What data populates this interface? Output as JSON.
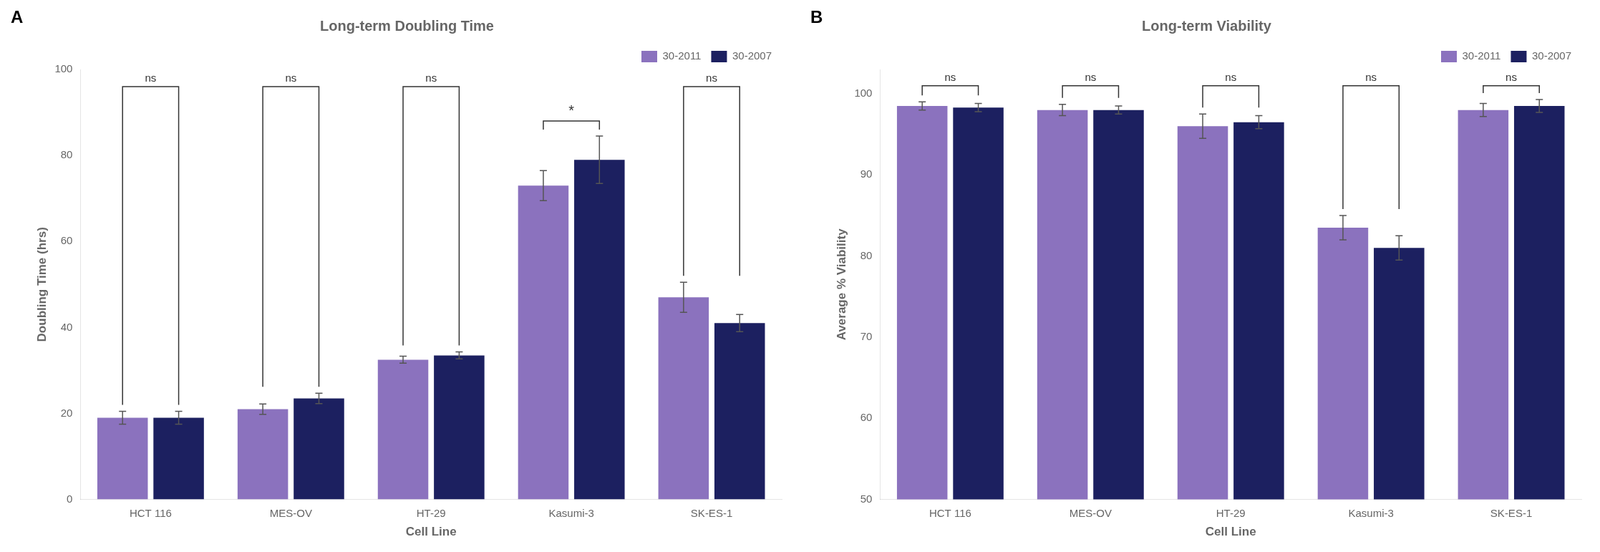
{
  "chart_data": [
    {
      "type": "bar",
      "panel_label": "A",
      "title": "Long-term Doubling Time",
      "xlabel": "Cell Line",
      "ylabel": "Doubling Time (hrs)",
      "categories": [
        "HCT 116",
        "MES-OV",
        "HT-29",
        "Kasumi-3",
        "SK-ES-1"
      ],
      "series": [
        {
          "name": "30-2011",
          "color": "#8B72BE",
          "values": [
            19.0,
            21.0,
            32.5,
            73.0,
            47.0
          ],
          "errors": [
            1.5,
            1.2,
            0.8,
            3.5,
            3.5
          ]
        },
        {
          "name": "30-2007",
          "color": "#1C2060",
          "values": [
            19.0,
            23.5,
            33.5,
            79.0,
            41.0
          ],
          "errors": [
            1.5,
            1.2,
            0.8,
            5.5,
            2.0
          ]
        }
      ],
      "ylim": [
        0,
        100
      ],
      "yticks": [
        0,
        20,
        40,
        60,
        80,
        100
      ],
      "annotations": [
        {
          "text": "ns",
          "x": "HCT 116",
          "y": 96
        },
        {
          "text": "ns",
          "x": "MES-OV",
          "y": 96
        },
        {
          "text": "ns",
          "x": "HT-29",
          "y": 96
        },
        {
          "text": "*",
          "x": "Kasumi-3",
          "y": 88
        },
        {
          "text": "ns",
          "x": "SK-ES-1",
          "y": 96
        }
      ],
      "grid": false,
      "legend": "upper right"
    },
    {
      "type": "bar",
      "panel_label": "B",
      "title": "Long-term Viability",
      "xlabel": "Cell Line",
      "ylabel": "Average % Viability",
      "categories": [
        "HCT 116",
        "MES-OV",
        "HT-29",
        "Kasumi-3",
        "SK-ES-1"
      ],
      "series": [
        {
          "name": "30-2011",
          "color": "#8B72BE",
          "values": [
            98.5,
            98.0,
            96.0,
            83.5,
            98.0
          ],
          "errors": [
            0.5,
            0.7,
            1.5,
            1.5,
            0.8
          ]
        },
        {
          "name": "30-2007",
          "color": "#1C2060",
          "values": [
            98.3,
            98.0,
            96.5,
            81.0,
            98.5
          ],
          "errors": [
            0.5,
            0.5,
            0.8,
            1.5,
            0.8
          ]
        }
      ],
      "ylim": [
        50,
        103
      ],
      "yticks": [
        50,
        60,
        70,
        80,
        90,
        100
      ],
      "annotations": [
        {
          "text": "ns",
          "x": "HCT 116",
          "y": 101.0
        },
        {
          "text": "ns",
          "x": "MES-OV",
          "y": 101.0
        },
        {
          "text": "ns",
          "x": "HT-29",
          "y": 101.0
        },
        {
          "text": "ns",
          "x": "Kasumi-3",
          "y": 101.0
        },
        {
          "text": "ns",
          "x": "SK-ES-1",
          "y": 101.0
        }
      ],
      "grid": false,
      "legend": "upper right"
    }
  ]
}
